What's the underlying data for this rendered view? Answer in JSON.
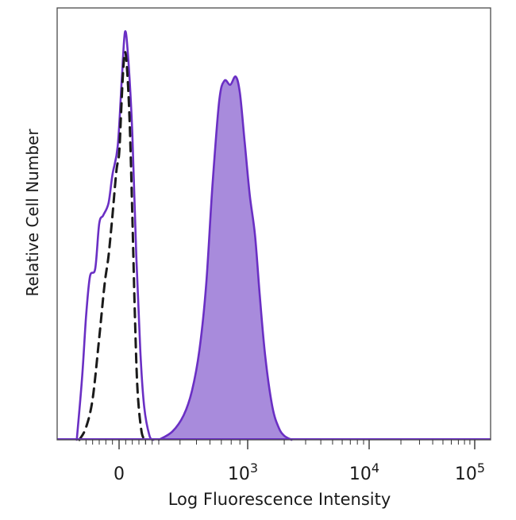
{
  "chart_data": {
    "type": "area",
    "title": "",
    "xlabel": "Log Fluorescence Intensity",
    "ylabel": "Relative Cell Number",
    "x_scale": "biexponential",
    "ylim": [
      0,
      100
    ],
    "grid": false,
    "legend": "none",
    "x_ticks": [
      {
        "value": 0,
        "base": "0",
        "exp": ""
      },
      {
        "value": 1000,
        "base": "10",
        "exp": "3"
      },
      {
        "value": 10000,
        "base": "10",
        "exp": "4"
      },
      {
        "value": 100000,
        "base": "10",
        "exp": "5"
      }
    ],
    "series": [
      {
        "style": "dashed",
        "color": "#1a1a1a",
        "fill": "none",
        "points": [
          [
            -300,
            0
          ],
          [
            -250,
            3
          ],
          [
            -200,
            10
          ],
          [
            -150,
            25
          ],
          [
            -110,
            38
          ],
          [
            -80,
            45
          ],
          [
            -50,
            55
          ],
          [
            -20,
            66
          ],
          [
            0,
            70
          ],
          [
            15,
            80
          ],
          [
            30,
            90
          ],
          [
            45,
            95
          ],
          [
            60,
            91
          ],
          [
            80,
            78
          ],
          [
            100,
            55
          ],
          [
            120,
            30
          ],
          [
            140,
            12
          ],
          [
            170,
            2
          ],
          [
            200,
            0
          ]
        ]
      },
      {
        "style": "solid",
        "color": "#6a2fc4",
        "fill": "none",
        "points": [
          [
            -320,
            0
          ],
          [
            -280,
            15
          ],
          [
            -250,
            30
          ],
          [
            -220,
            40
          ],
          [
            -180,
            42
          ],
          [
            -150,
            53
          ],
          [
            -120,
            55
          ],
          [
            -80,
            58
          ],
          [
            -50,
            65
          ],
          [
            -10,
            72
          ],
          [
            20,
            88
          ],
          [
            45,
            100
          ],
          [
            70,
            93
          ],
          [
            100,
            75
          ],
          [
            130,
            45
          ],
          [
            160,
            22
          ],
          [
            190,
            8
          ],
          [
            230,
            1
          ],
          [
            260,
            0
          ]
        ]
      },
      {
        "style": "solid",
        "color": "#6a2fc4",
        "fill": "#a88bdc",
        "points": [
          [
            300,
            0
          ],
          [
            360,
            2
          ],
          [
            420,
            6
          ],
          [
            470,
            12
          ],
          [
            520,
            22
          ],
          [
            570,
            38
          ],
          [
            620,
            62
          ],
          [
            680,
            83
          ],
          [
            730,
            88
          ],
          [
            790,
            87
          ],
          [
            850,
            89
          ],
          [
            900,
            85
          ],
          [
            960,
            73
          ],
          [
            1040,
            60
          ],
          [
            1150,
            50
          ],
          [
            1260,
            35
          ],
          [
            1400,
            20
          ],
          [
            1600,
            8
          ],
          [
            1800,
            3
          ],
          [
            2000,
            1
          ],
          [
            2300,
            0
          ]
        ]
      }
    ]
  }
}
